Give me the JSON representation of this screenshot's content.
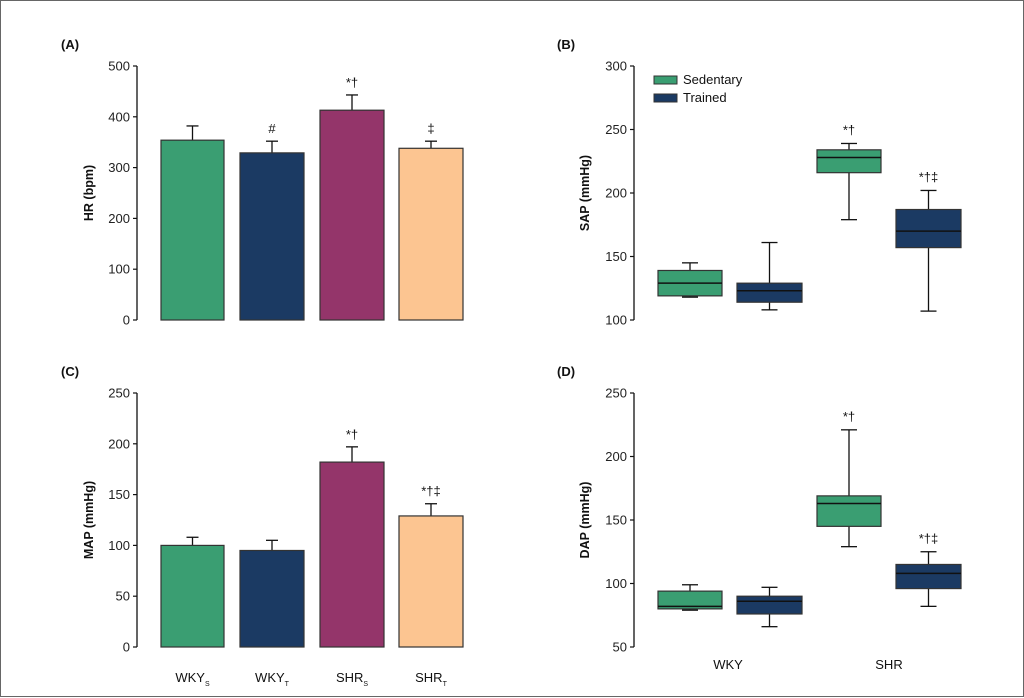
{
  "colors": {
    "wky_s": "#3a9e72",
    "wky_t": "#1b3a63",
    "shr_s": "#94356a",
    "shr_t": "#fcc591",
    "sedentary": "#3a9e72",
    "trained": "#1b3a63"
  },
  "legend": {
    "sedentary": "Sedentary",
    "trained": "Trained"
  },
  "chart_data": [
    {
      "panel": "(A)",
      "type": "bar",
      "ylabel": "HR (bpm)",
      "ylim": [
        0,
        500
      ],
      "yticks": [
        0,
        100,
        200,
        300,
        400,
        500
      ],
      "categories": [
        {
          "base": "WKY",
          "sub": "S"
        },
        {
          "base": "WKY",
          "sub": "T"
        },
        {
          "base": "SHR",
          "sub": "S"
        },
        {
          "base": "SHR",
          "sub": "T"
        }
      ],
      "show_category_labels": false,
      "values": [
        354,
        329,
        413,
        338
      ],
      "error_upper": [
        382,
        352,
        443,
        352
      ],
      "annotations": [
        "",
        "#",
        "*†",
        "‡"
      ],
      "color_keys": [
        "wky_s",
        "wky_t",
        "shr_s",
        "shr_t"
      ]
    },
    {
      "panel": "(B)",
      "type": "box",
      "ylabel": "SAP (mmHg)",
      "ylim": [
        100,
        300
      ],
      "yticks": [
        100,
        150,
        200,
        250,
        300
      ],
      "groups": [
        "WKY",
        "SHR"
      ],
      "show_group_labels": false,
      "legend": true,
      "boxes": [
        {
          "group": "WKY",
          "series": "Sedentary",
          "min": 118,
          "q1": 119,
          "median": 129,
          "q3": 139,
          "max": 145,
          "annotation": ""
        },
        {
          "group": "WKY",
          "series": "Trained",
          "min": 108,
          "q1": 114,
          "median": 123,
          "q3": 129,
          "max": 161,
          "annotation": ""
        },
        {
          "group": "SHR",
          "series": "Sedentary",
          "min": 179,
          "q1": 216,
          "median": 228,
          "q3": 234,
          "max": 239,
          "annotation": "*†"
        },
        {
          "group": "SHR",
          "series": "Trained",
          "min": 107,
          "q1": 157,
          "median": 170,
          "q3": 187,
          "max": 202,
          "annotation": "*†‡"
        }
      ]
    },
    {
      "panel": "(C)",
      "type": "bar",
      "ylabel": "MAP (mmHg)",
      "ylim": [
        0,
        250
      ],
      "yticks": [
        0,
        50,
        100,
        150,
        200,
        250
      ],
      "categories": [
        {
          "base": "WKY",
          "sub": "S"
        },
        {
          "base": "WKY",
          "sub": "T"
        },
        {
          "base": "SHR",
          "sub": "S"
        },
        {
          "base": "SHR",
          "sub": "T"
        }
      ],
      "show_category_labels": true,
      "values": [
        100,
        95,
        182,
        129
      ],
      "error_upper": [
        108,
        105,
        197,
        141
      ],
      "annotations": [
        "",
        "",
        "*†",
        "*†‡"
      ],
      "color_keys": [
        "wky_s",
        "wky_t",
        "shr_s",
        "shr_t"
      ]
    },
    {
      "panel": "(D)",
      "type": "box",
      "ylabel": "DAP (mmHg)",
      "ylim": [
        50,
        250
      ],
      "yticks": [
        50,
        100,
        150,
        200,
        250
      ],
      "groups": [
        "WKY",
        "SHR"
      ],
      "show_group_labels": true,
      "legend": false,
      "boxes": [
        {
          "group": "WKY",
          "series": "Sedentary",
          "min": 79,
          "q1": 80,
          "median": 82,
          "q3": 94,
          "max": 99,
          "annotation": ""
        },
        {
          "group": "WKY",
          "series": "Trained",
          "min": 66,
          "q1": 76,
          "median": 86,
          "q3": 90,
          "max": 97,
          "annotation": ""
        },
        {
          "group": "SHR",
          "series": "Sedentary",
          "min": 129,
          "q1": 145,
          "median": 163,
          "q3": 169,
          "max": 221,
          "annotation": "*†"
        },
        {
          "group": "SHR",
          "series": "Trained",
          "min": 82,
          "q1": 96,
          "median": 108,
          "q3": 115,
          "max": 125,
          "annotation": "*†‡"
        }
      ]
    }
  ]
}
